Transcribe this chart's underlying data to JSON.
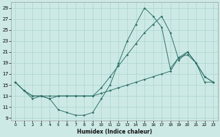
{
  "xlabel": "Humidex (Indice chaleur)",
  "ylabel": "",
  "background_color": "#cce9e5",
  "grid_color": "#aad4cf",
  "line_color": "#2d7068",
  "xlim": [
    -0.5,
    23.5
  ],
  "ylim": [
    8.5,
    30.0
  ],
  "yticks": [
    9,
    11,
    13,
    15,
    17,
    19,
    21,
    23,
    25,
    27,
    29
  ],
  "xticks": [
    0,
    1,
    2,
    3,
    4,
    5,
    6,
    7,
    8,
    9,
    10,
    11,
    12,
    13,
    14,
    15,
    16,
    17,
    18,
    19,
    20,
    21,
    22,
    23
  ],
  "line1_x": [
    0,
    1,
    2,
    3,
    4,
    5,
    6,
    7,
    8,
    9,
    10,
    11,
    12,
    13,
    14,
    15,
    16,
    17,
    18,
    19,
    20,
    21,
    22,
    23
  ],
  "line1_y": [
    15.5,
    14.0,
    12.5,
    13.0,
    12.5,
    10.5,
    10.0,
    9.5,
    9.5,
    10.0,
    12.5,
    15.0,
    19.0,
    23.0,
    26.0,
    29.0,
    27.5,
    25.5,
    18.0,
    20.0,
    21.0,
    19.0,
    15.5,
    15.5
  ],
  "line2_x": [
    0,
    1,
    2,
    3,
    4,
    5,
    6,
    7,
    8,
    9,
    10,
    11,
    12,
    13,
    14,
    15,
    16,
    17,
    18,
    19,
    20,
    21,
    22,
    23
  ],
  "line2_y": [
    15.5,
    14.0,
    13.0,
    13.0,
    13.0,
    13.0,
    13.0,
    13.0,
    13.0,
    13.0,
    14.5,
    16.5,
    18.5,
    20.5,
    22.5,
    24.5,
    26.0,
    27.5,
    24.5,
    19.5,
    21.0,
    19.0,
    16.5,
    15.5
  ],
  "line3_x": [
    0,
    1,
    2,
    3,
    4,
    5,
    6,
    7,
    8,
    9,
    10,
    11,
    12,
    13,
    14,
    15,
    16,
    17,
    18,
    19,
    20,
    21,
    22,
    23
  ],
  "line3_y": [
    15.5,
    14.0,
    13.0,
    13.0,
    12.5,
    13.0,
    13.0,
    13.0,
    13.0,
    13.0,
    13.5,
    14.0,
    14.5,
    15.0,
    15.5,
    16.0,
    16.5,
    17.0,
    17.5,
    20.0,
    20.5,
    19.0,
    16.5,
    15.5
  ]
}
